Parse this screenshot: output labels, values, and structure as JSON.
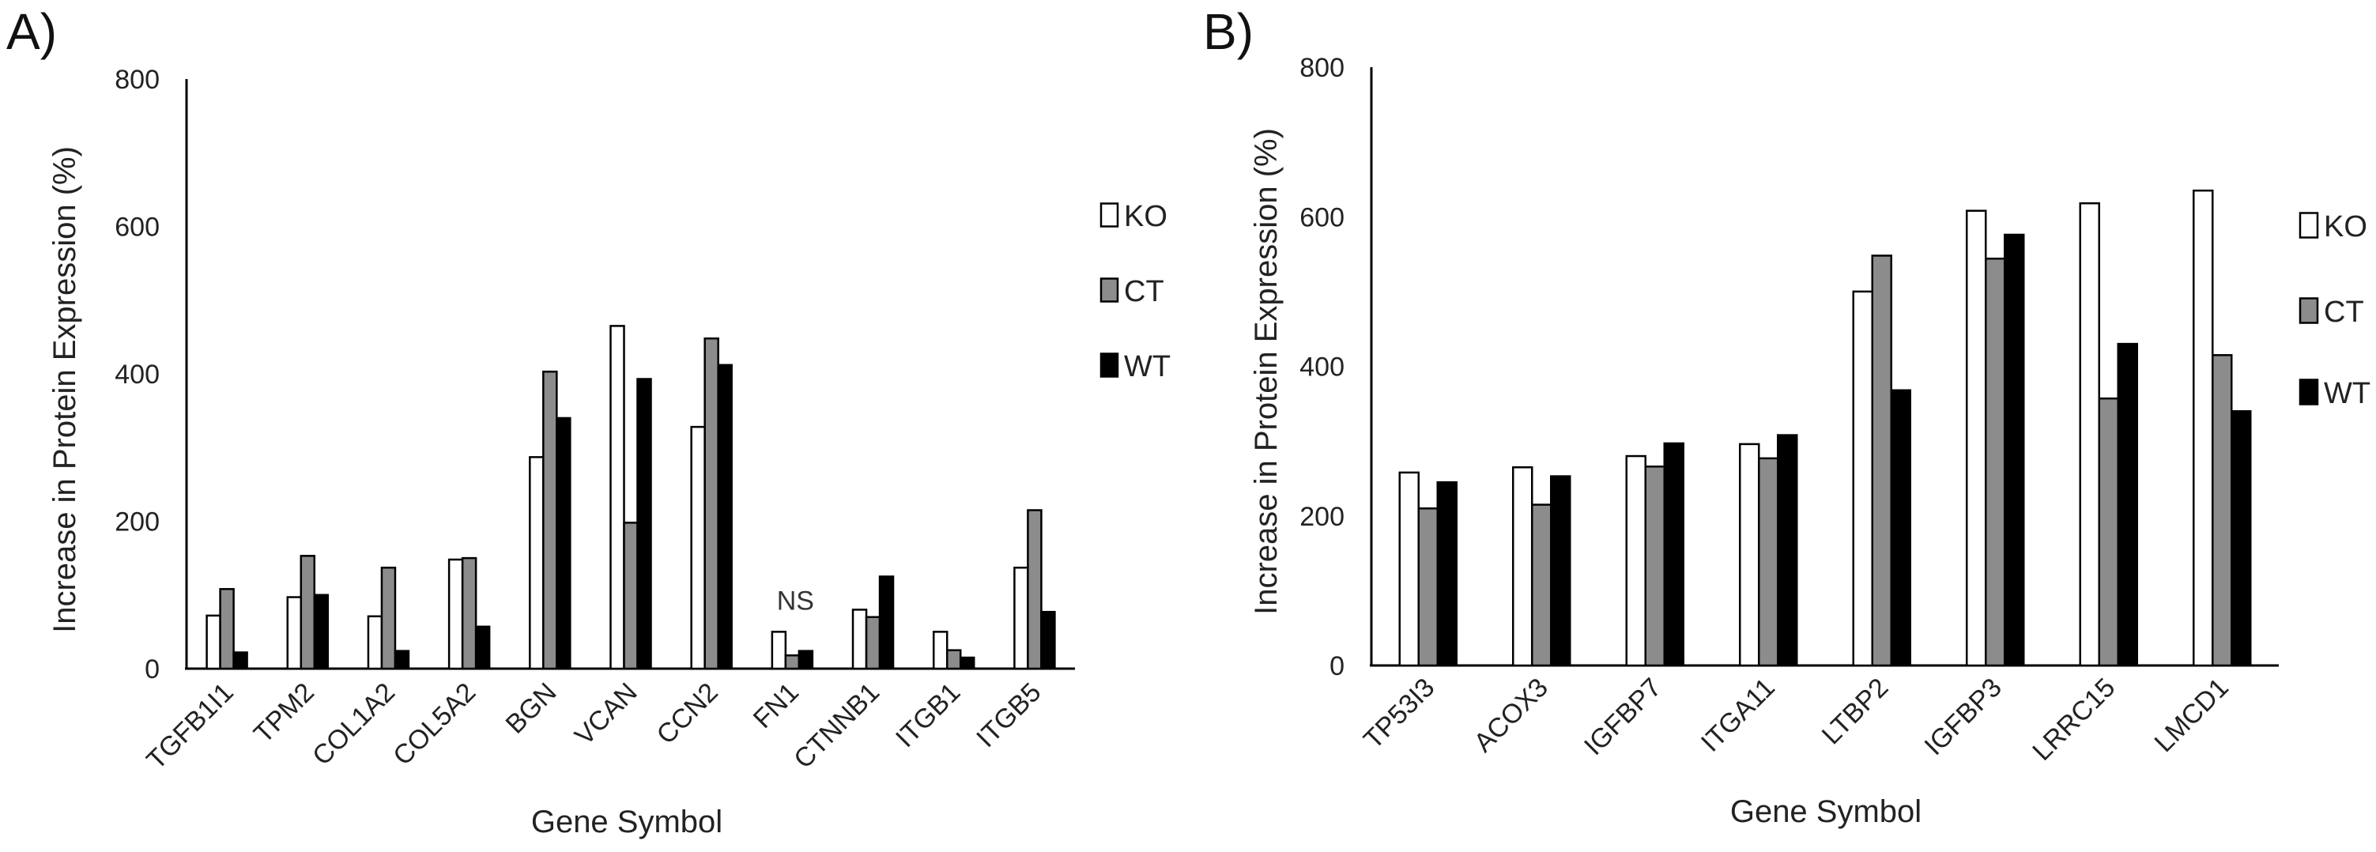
{
  "colors": {
    "KO": "#ffffff",
    "CT": "#8c8c8c",
    "WT": "#000000"
  },
  "chart_data": [
    {
      "panel": "A)",
      "type": "bar",
      "categories": [
        "TGFB1I1",
        "TPM2",
        "COL1A2",
        "COL5A2",
        "BGN",
        "VCAN",
        "CCN2",
        "FN1",
        "CTNNB1",
        "ITGB1",
        "ITGB5"
      ],
      "series": [
        {
          "name": "KO",
          "values": [
            72,
            97,
            71,
            148,
            287,
            465,
            328,
            50,
            80,
            50,
            137
          ]
        },
        {
          "name": "CT",
          "values": [
            108,
            153,
            137,
            150,
            403,
            198,
            448,
            18,
            70,
            25,
            215
          ]
        },
        {
          "name": "WT",
          "values": [
            22,
            100,
            24,
            57,
            340,
            393,
            412,
            24,
            125,
            15,
            77
          ]
        }
      ],
      "xlabel": "Gene Symbol",
      "ylabel": "Increase in Protein Expression (%)",
      "ylim": [
        0,
        800
      ],
      "yticks": [
        0,
        200,
        400,
        600,
        800
      ],
      "grid": false,
      "legend": "right",
      "annotations": [
        {
          "text": "NS",
          "category": "FN1"
        }
      ]
    },
    {
      "panel": "B)",
      "type": "bar",
      "categories": [
        "TP53I3",
        "ACOX3",
        "IGFBP7",
        "ITGA11",
        "LTBP2",
        "IGFBP3",
        "LRRC15",
        "LMCD1"
      ],
      "series": [
        {
          "name": "KO",
          "values": [
            258,
            265,
            280,
            296,
            500,
            608,
            618,
            635
          ]
        },
        {
          "name": "CT",
          "values": [
            210,
            215,
            266,
            277,
            548,
            544,
            357,
            415
          ]
        },
        {
          "name": "WT",
          "values": [
            245,
            253,
            297,
            308,
            368,
            576,
            430,
            340
          ]
        }
      ],
      "xlabel": "Gene Symbol",
      "ylabel": "Increase in Protein Expression (%)",
      "ylim": [
        0,
        800
      ],
      "yticks": [
        0,
        200,
        400,
        600,
        800
      ],
      "grid": false,
      "legend": "right"
    }
  ]
}
